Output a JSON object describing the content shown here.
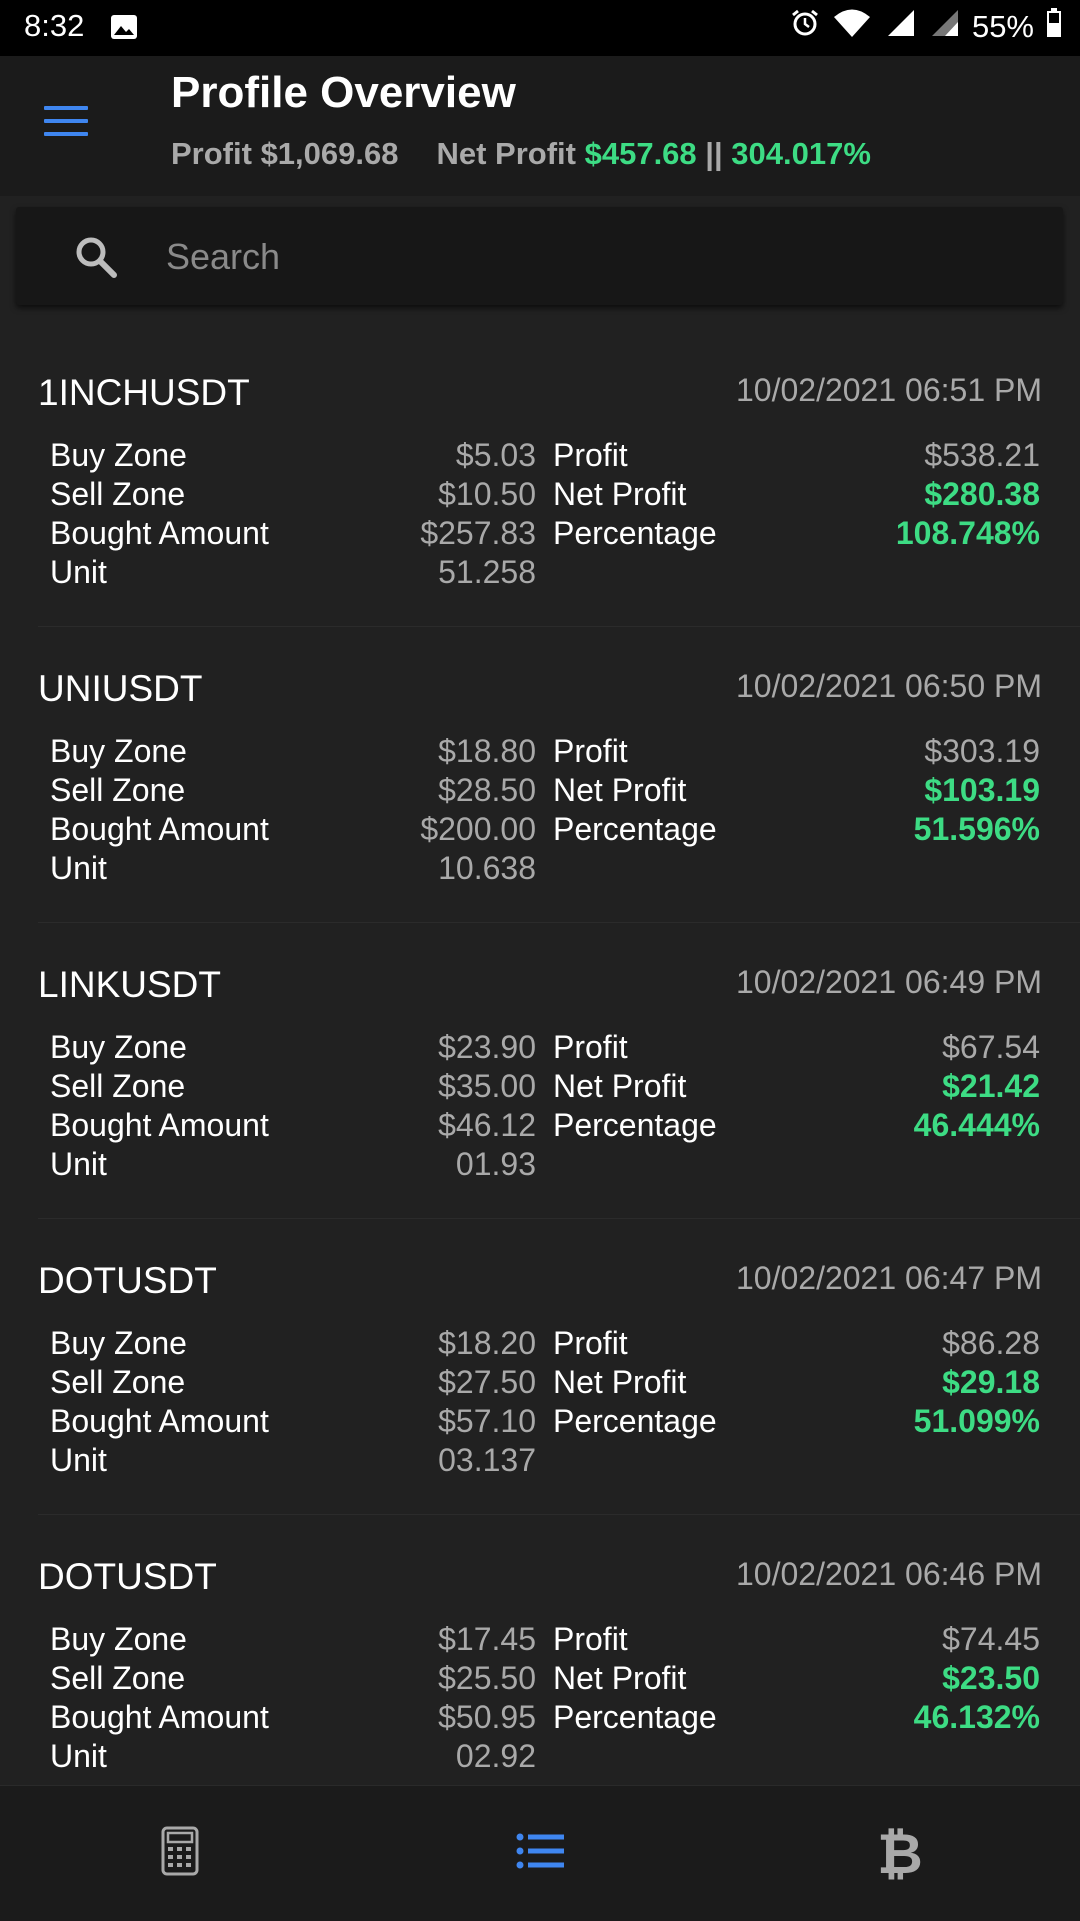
{
  "status": {
    "time": "8:32",
    "battery": "55%"
  },
  "header": {
    "title": "Profile Overview",
    "profit_label": "Profit",
    "profit_value": "$1,069.68",
    "net_profit_label": "Net Profit",
    "net_profit_value": "$457.68",
    "separator": "||",
    "percentage": "304.017%"
  },
  "search": {
    "placeholder": "Search"
  },
  "labels": {
    "buy_zone": "Buy Zone",
    "sell_zone": "Sell Zone",
    "bought_amount": "Bought Amount",
    "unit": "Unit",
    "profit": "Profit",
    "net_profit": "Net Profit",
    "percentage": "Percentage"
  },
  "trades": [
    {
      "symbol": "1INCHUSDT",
      "date": "10/02/2021 06:51 PM",
      "buy_zone": "$5.03",
      "sell_zone": "$10.50",
      "bought_amount": "$257.83",
      "unit": "51.258",
      "profit": "$538.21",
      "net_profit": "$280.38",
      "percentage": "108.748%"
    },
    {
      "symbol": "UNIUSDT",
      "date": "10/02/2021 06:50 PM",
      "buy_zone": "$18.80",
      "sell_zone": "$28.50",
      "bought_amount": "$200.00",
      "unit": "10.638",
      "profit": "$303.19",
      "net_profit": "$103.19",
      "percentage": "51.596%"
    },
    {
      "symbol": "LINKUSDT",
      "date": "10/02/2021 06:49 PM",
      "buy_zone": "$23.90",
      "sell_zone": "$35.00",
      "bought_amount": "$46.12",
      "unit": "01.93",
      "profit": "$67.54",
      "net_profit": "$21.42",
      "percentage": "46.444%"
    },
    {
      "symbol": "DOTUSDT",
      "date": "10/02/2021 06:47 PM",
      "buy_zone": "$18.20",
      "sell_zone": "$27.50",
      "bought_amount": "$57.10",
      "unit": "03.137",
      "profit": "$86.28",
      "net_profit": "$29.18",
      "percentage": "51.099%"
    },
    {
      "symbol": "DOTUSDT",
      "date": "10/02/2021 06:46 PM",
      "buy_zone": "$17.45",
      "sell_zone": "$25.50",
      "bought_amount": "$50.95",
      "unit": "02.92",
      "profit": "$74.45",
      "net_profit": "$23.50",
      "percentage": "46.132%"
    }
  ],
  "nav": {
    "btc_symbol": "₿"
  },
  "colors": {
    "accent": "#3f86f0",
    "positive": "#3ddc84",
    "background": "#212121"
  }
}
